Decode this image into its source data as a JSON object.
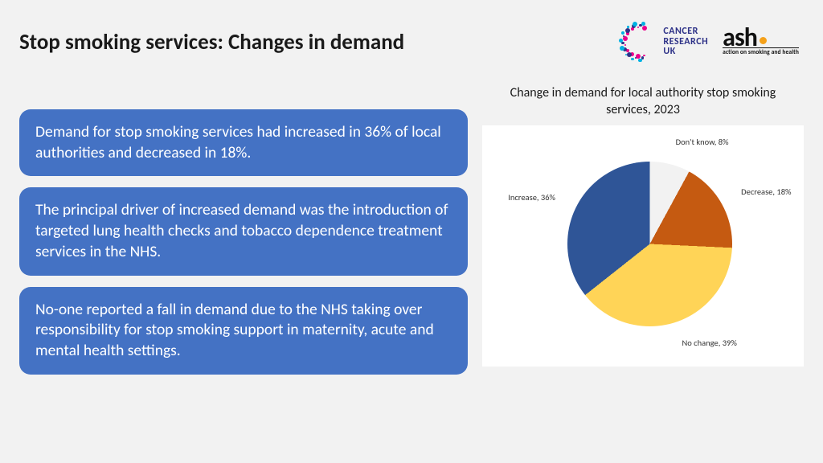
{
  "title": "Stop smoking services: Changes in demand",
  "logos": {
    "cruk": {
      "line1": "CANCER",
      "line2": "RESEARCH",
      "line3": "UK",
      "dot_colors": [
        "#ec008c",
        "#2e3288",
        "#00b2e3",
        "#ec008c",
        "#2e3288",
        "#00b2e3",
        "#ec008c",
        "#2e3288",
        "#00b2e3",
        "#ec008c",
        "#2e3288",
        "#00b2e3",
        "#ec008c",
        "#2e3288",
        "#00b2e3",
        "#ec008c",
        "#2e3288",
        "#00b2e3",
        "#ec008c",
        "#2e3288",
        "#00b2e3",
        "#ec008c",
        "#2e3288",
        "#00b2e3",
        "#ec008c",
        "#2e3288",
        "#00b2e3",
        "#ec008c"
      ]
    },
    "ash": {
      "word": "ash",
      "dot_color": "#f5a11a",
      "sub": "action on smoking and health"
    }
  },
  "callouts": {
    "bg": "#4472c4",
    "items": [
      "Demand for stop smoking services had increased in 36% of local authorities and decreased in 18%.",
      "The principal driver of increased demand was the introduction of targeted lung health checks and tobacco dependence treatment services in the NHS.",
      "No-one reported a fall in demand due to the NHS taking over responsibility for stop smoking support in maternity, acute and mental health settings."
    ]
  },
  "chart": {
    "title": "Change in demand for local authority stop smoking services, 2023",
    "type": "pie",
    "background_color": "#ffffff",
    "start_angle_deg": -90,
    "label_fontsize": 10.5,
    "label_color": "#333333",
    "slices": [
      {
        "label": "Don't know, 8%",
        "value": 8,
        "color": "#f2f2f2"
      },
      {
        "label": "Decrease, 18%",
        "value": 18,
        "color": "#c55a11"
      },
      {
        "label": "No change, 39%",
        "value": 39,
        "color": "#ffd457"
      },
      {
        "label": "Increase, 36%",
        "value": 36,
        "color": "#2f5597"
      }
    ]
  }
}
